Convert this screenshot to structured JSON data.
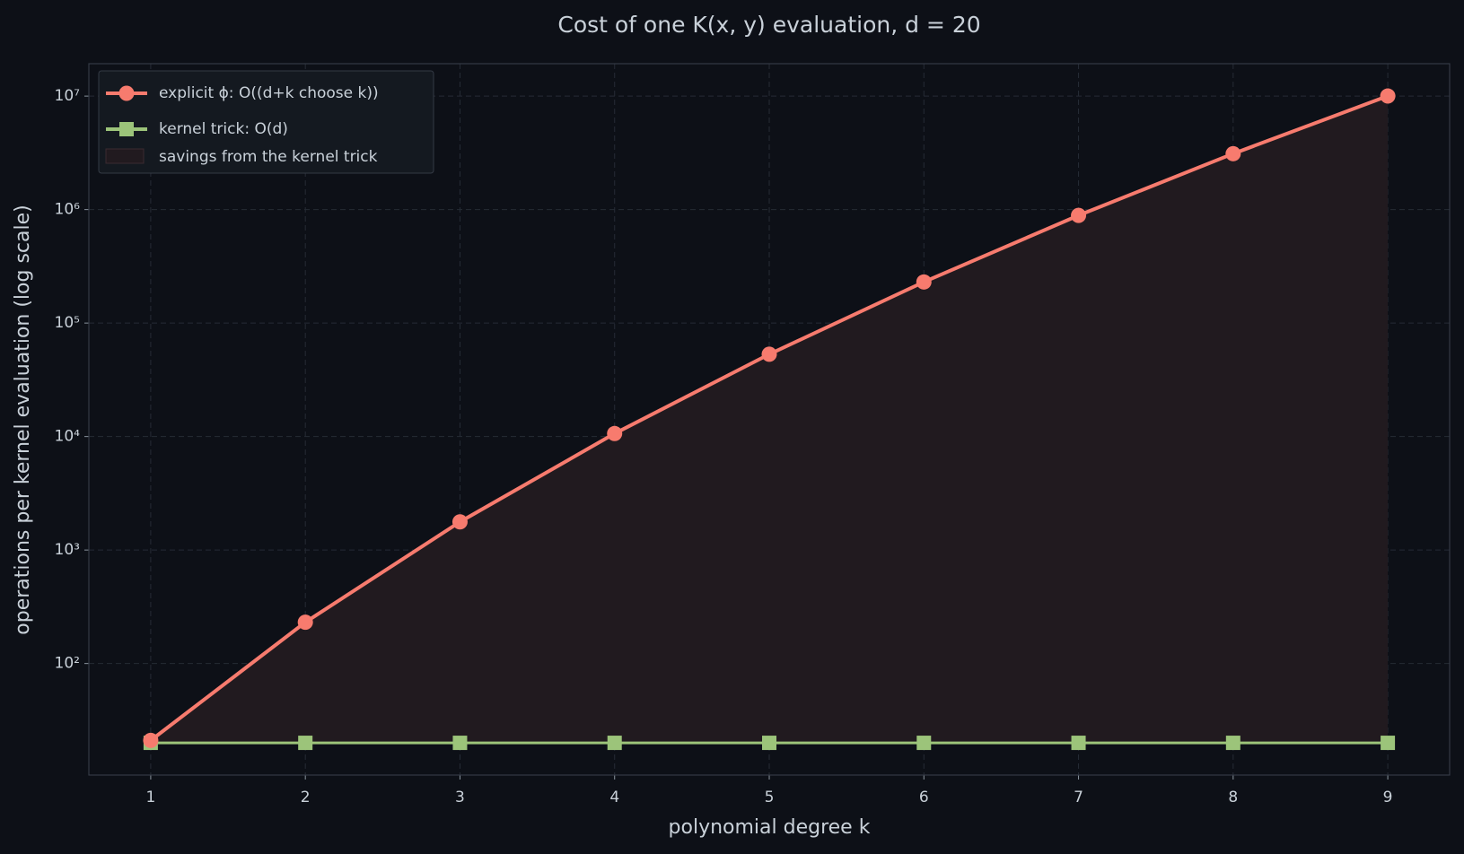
{
  "chart_data": {
    "type": "line",
    "title": "Cost of one K(x, y) evaluation, d = 20",
    "x_label": "polynomial degree  k",
    "y_label": "operations per kernel evaluation (log scale)",
    "x": [
      1,
      2,
      3,
      4,
      5,
      6,
      7,
      8,
      9
    ],
    "series": [
      {
        "name": "explicit ϕ: O((d+k choose k))",
        "color": "#f77b6e",
        "marker": "circle",
        "values": [
          21,
          231,
          1771,
          10626,
          53130,
          230230,
          888030,
          3108105,
          10015005
        ]
      },
      {
        "name": "kernel trick: O(d)",
        "color": "#9cc47a",
        "marker": "square",
        "values": [
          20,
          20,
          20,
          20,
          20,
          20,
          20,
          20,
          20
        ]
      }
    ],
    "fill": {
      "name": "savings from the kernel trick",
      "color": "#211a1f"
    },
    "xlim": [
      0.6,
      9.4
    ],
    "ylim": [
      10.4,
      19300000
    ],
    "log_y": true,
    "xticks": [
      1,
      2,
      3,
      4,
      5,
      6,
      7,
      8,
      9
    ],
    "yticks": [
      {
        "value": 100,
        "label": "10²"
      },
      {
        "value": 1000,
        "label": "10³"
      },
      {
        "value": 10000,
        "label": "10⁴"
      },
      {
        "value": 100000,
        "label": "10⁵"
      },
      {
        "value": 1000000,
        "label": "10⁶"
      },
      {
        "value": 10000000,
        "label": "10⁷"
      }
    ],
    "grid": true,
    "legend": "upper left"
  }
}
